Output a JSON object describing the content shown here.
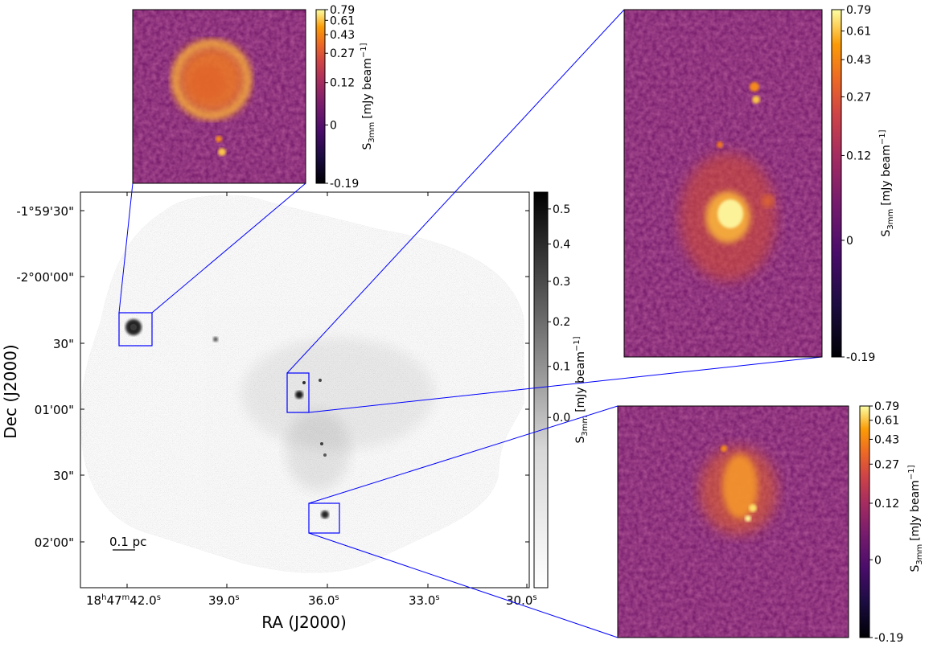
{
  "chart_data": [
    {
      "type": "heatmap",
      "name": "main-grayscale-mosaic",
      "colormap": "gray_r",
      "xlabel": "RA (J2000)",
      "ylabel": "Dec (J2000)",
      "x_ticks": [
        {
          "label": "18h47m42.0s",
          "parts": {
            "hh": "18",
            "mm": "47",
            "ss": "42.0"
          }
        },
        {
          "label": "39.0s",
          "value": "39.0"
        },
        {
          "label": "36.0s",
          "value": "36.0"
        },
        {
          "label": "33.0s",
          "value": "33.0"
        },
        {
          "label": "30.0s",
          "value": "30.0"
        }
      ],
      "y_ticks": [
        "-1°59'30\"",
        "-2°00'00\"",
        "30\"",
        "01'00\"",
        "30\"",
        "02'00\""
      ],
      "scalebar_label": "0.1 pc",
      "colorbar": {
        "label": "S3mm [mJy beam^-1]",
        "label_parts": {
          "sym": "S",
          "sub": "3mm",
          "unit": "[mJy beam",
          "exp": "−1]"
        },
        "ticks": [
          "0.0",
          "0.1",
          "0.2",
          "0.3",
          "0.4",
          "0.5"
        ],
        "tick_values": [
          0.0,
          0.1,
          0.2,
          0.3,
          0.4,
          0.5
        ],
        "range": [
          -0.19,
          0.55
        ]
      },
      "zoom_regions": [
        {
          "id": "zoom-top-left",
          "target": "inset-top-left"
        },
        {
          "id": "zoom-center",
          "target": "inset-top-right"
        },
        {
          "id": "zoom-bottom",
          "target": "inset-bottom-right"
        }
      ]
    },
    {
      "type": "heatmap",
      "name": "inset-top-left",
      "colormap": "inferno",
      "colorbar": {
        "label": "S3mm [mJy beam^-1]",
        "ticks": [
          "0.79",
          "0.61",
          "0.43",
          "0.27",
          "0.12",
          "0",
          "-0.19"
        ],
        "tick_values": [
          0.79,
          0.61,
          0.43,
          0.27,
          0.12,
          0,
          -0.19
        ]
      }
    },
    {
      "type": "heatmap",
      "name": "inset-top-right",
      "colormap": "inferno",
      "colorbar": {
        "label": "S3mm [mJy beam^-1]",
        "ticks": [
          "0.79",
          "0.61",
          "0.43",
          "0.27",
          "0.12",
          "0",
          "-0.19"
        ],
        "tick_values": [
          0.79,
          0.61,
          0.43,
          0.27,
          0.12,
          0,
          -0.19
        ]
      }
    },
    {
      "type": "heatmap",
      "name": "inset-bottom-right",
      "colormap": "inferno",
      "colorbar": {
        "label": "S3mm [mJy beam^-1]",
        "ticks": [
          "0.79",
          "0.61",
          "0.43",
          "0.27",
          "0.12",
          "0",
          "-0.19"
        ],
        "tick_values": [
          0.79,
          0.61,
          0.43,
          0.27,
          0.12,
          0,
          -0.19
        ]
      }
    }
  ]
}
